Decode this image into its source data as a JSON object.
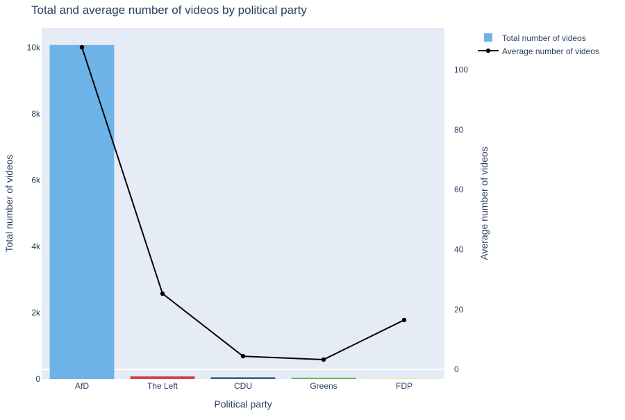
{
  "chart_data": {
    "type": "bar",
    "title": "Total and average number of videos by political party",
    "xlabel": "Political party",
    "ylabel": "Total number of videos",
    "y2label": "Average number of videos",
    "categories": [
      "AfD",
      "The Left",
      "CDU",
      "Greens",
      "FDP"
    ],
    "series": [
      {
        "name": "Total number of videos",
        "type": "bar",
        "axis": "left",
        "values": [
          10080,
          80,
          55,
          40,
          15
        ],
        "colors": [
          "#6db3e8",
          "#d6424b",
          "#2e6a8a",
          "#5cb85c",
          "#f3e27a"
        ]
      },
      {
        "name": "Average number of videos",
        "type": "line",
        "axis": "right",
        "values": [
          107.5,
          25.3,
          4.4,
          3.3,
          16.5
        ],
        "color": "#000000"
      }
    ],
    "ylim": [
      0,
      10600
    ],
    "y_ticks": [
      0,
      2000,
      4000,
      6000,
      8000,
      10000
    ],
    "y_tick_labels": [
      "0",
      "2k",
      "4k",
      "6k",
      "8k",
      "10k"
    ],
    "y2lim": [
      -3.2,
      114
    ],
    "y2_ticks": [
      0,
      20,
      40,
      60,
      80,
      100
    ],
    "y2_tick_labels": [
      "0",
      "20",
      "40",
      "60",
      "80",
      "100"
    ],
    "grid": false,
    "legend_position": "top-right",
    "plot_background": "#e5ecf6"
  }
}
